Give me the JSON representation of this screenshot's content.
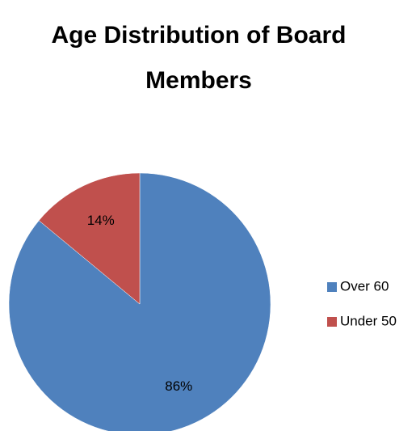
{
  "chart_data": {
    "type": "pie",
    "title": "Age Distribution of Board Members",
    "categories": [
      "Over 60",
      "Under 50"
    ],
    "values": [
      86,
      14
    ],
    "value_labels": [
      "86%",
      "14%"
    ],
    "colors": [
      "#4f81bd",
      "#c0504d"
    ]
  }
}
